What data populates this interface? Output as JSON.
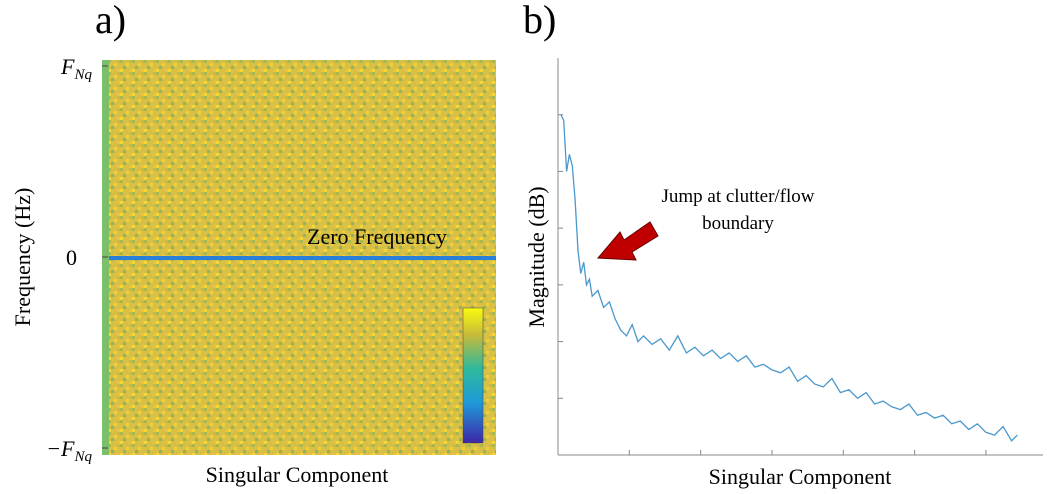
{
  "chart_data": [
    {
      "type": "heatmap",
      "panel_label": "a)",
      "ylabel": "Frequency (Hz)",
      "xlabel": "Singular Component",
      "ylim": [
        -1,
        1
      ],
      "yticks": [
        {
          "value": -1,
          "label": "−F",
          "subscript": "Nq"
        },
        0,
        {
          "value": 1,
          "label": "F",
          "subscript": "Nq"
        }
      ],
      "annotation": "Zero Frequency"
    },
    {
      "type": "line",
      "panel_label": "b)",
      "ylabel": "Magnitude (dB)",
      "xlabel": "Singular Component",
      "annotation": [
        "Jump at clutter/flow",
        "boundary"
      ],
      "xlim": [
        0,
        170
      ],
      "xticks": [
        25,
        50,
        75,
        100,
        125,
        150
      ],
      "ylim": [
        0,
        7
      ],
      "yticks": [
        1,
        2,
        3,
        4,
        5,
        6
      ],
      "color": "#4a98cc",
      "x": [
        1,
        2,
        3,
        4,
        5,
        6,
        7,
        8,
        9,
        10,
        11,
        12,
        14,
        16,
        18,
        20,
        22,
        24,
        26,
        28,
        30,
        33,
        36,
        39,
        42,
        45,
        48,
        51,
        54,
        57,
        60,
        63,
        66,
        69,
        72,
        75,
        78,
        81,
        84,
        87,
        90,
        93,
        96,
        99,
        102,
        105,
        108,
        111,
        114,
        117,
        120,
        123,
        126,
        129,
        132,
        135,
        138,
        141,
        144,
        147,
        150,
        153,
        156,
        159,
        161
      ],
      "values": [
        6.0,
        5.9,
        5.0,
        5.3,
        5.1,
        4.5,
        3.6,
        3.2,
        3.4,
        3.0,
        3.1,
        2.8,
        2.9,
        2.6,
        2.7,
        2.4,
        2.2,
        2.1,
        2.3,
        2.0,
        2.1,
        1.95,
        2.05,
        1.85,
        2.1,
        1.8,
        1.9,
        1.75,
        1.85,
        1.7,
        1.8,
        1.65,
        1.75,
        1.55,
        1.6,
        1.5,
        1.45,
        1.55,
        1.3,
        1.4,
        1.25,
        1.2,
        1.35,
        1.1,
        1.15,
        1.0,
        1.1,
        0.9,
        0.95,
        0.85,
        0.8,
        0.9,
        0.7,
        0.75,
        0.65,
        0.7,
        0.55,
        0.6,
        0.45,
        0.55,
        0.4,
        0.35,
        0.5,
        0.25,
        0.35
      ]
    }
  ]
}
